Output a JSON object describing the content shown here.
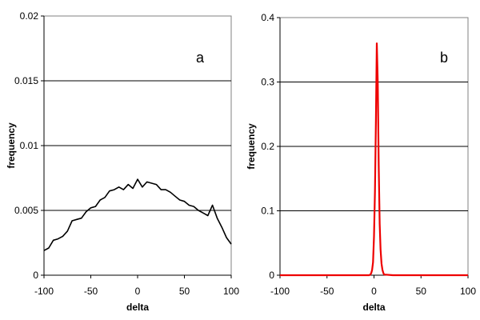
{
  "chart_data": [
    {
      "type": "line",
      "panel_label": "a",
      "xlabel": "delta",
      "ylabel": "frequency",
      "xlim": [
        -100,
        100
      ],
      "ylim": [
        0,
        0.02
      ],
      "x_ticks": [
        -100,
        -50,
        0,
        50,
        100
      ],
      "y_ticks": [
        0,
        0.005,
        0.01,
        0.015,
        0.02
      ],
      "y_tick_labels": [
        "0",
        "0.005",
        "0.01",
        "0.015",
        "0.02"
      ],
      "grid": "horizontal",
      "line_color": "#000000",
      "series": [
        {
          "x": [
            -100,
            -95,
            -90,
            -85,
            -80,
            -75,
            -70,
            -65,
            -60,
            -55,
            -50,
            -45,
            -40,
            -35,
            -30,
            -25,
            -20,
            -15,
            -10,
            -5,
            0,
            5,
            10,
            15,
            20,
            25,
            30,
            35,
            40,
            45,
            50,
            55,
            60,
            65,
            70,
            75,
            80,
            85,
            90,
            95,
            100
          ],
          "values": [
            0.0019,
            0.0021,
            0.0027,
            0.0028,
            0.003,
            0.0034,
            0.0042,
            0.0043,
            0.0044,
            0.0049,
            0.0052,
            0.0053,
            0.0058,
            0.006,
            0.0065,
            0.0066,
            0.0068,
            0.0066,
            0.007,
            0.0067,
            0.0074,
            0.0068,
            0.0072,
            0.0071,
            0.007,
            0.0066,
            0.0066,
            0.0064,
            0.0061,
            0.0058,
            0.0057,
            0.0054,
            0.0053,
            0.005,
            0.0048,
            0.0046,
            0.0054,
            0.0044,
            0.0037,
            0.0029,
            0.0024
          ]
        }
      ]
    },
    {
      "type": "line",
      "panel_label": "b",
      "xlabel": "delta",
      "ylabel": "frequency",
      "xlim": [
        -100,
        100
      ],
      "ylim": [
        0,
        0.4
      ],
      "x_ticks": [
        -100,
        -50,
        0,
        50,
        100
      ],
      "y_ticks": [
        0,
        0.1,
        0.2,
        0.3,
        0.4
      ],
      "y_tick_labels": [
        "0",
        "0.1",
        "0.2",
        "0.3",
        "0.4"
      ],
      "grid": "horizontal",
      "line_color": "#ee0000",
      "series": [
        {
          "x": [
            -100,
            -20,
            -5,
            -4,
            -3,
            -2,
            -1,
            0,
            1,
            2,
            3,
            4,
            5,
            6,
            7,
            8,
            9,
            10,
            11,
            20,
            100
          ],
          "values": [
            0,
            0,
            0,
            0.001,
            0.003,
            0.008,
            0.02,
            0.06,
            0.13,
            0.24,
            0.36,
            0.3,
            0.17,
            0.08,
            0.04,
            0.018,
            0.008,
            0.003,
            0.001,
            0,
            0
          ]
        }
      ]
    }
  ]
}
